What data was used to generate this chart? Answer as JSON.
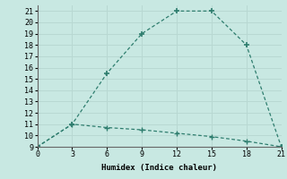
{
  "line1_x": [
    0,
    3,
    6,
    9,
    12,
    15,
    18,
    21
  ],
  "line1_y": [
    9,
    11,
    15.5,
    19,
    21,
    21,
    18,
    9
  ],
  "line2_x": [
    0,
    3,
    6,
    9,
    12,
    15,
    18,
    21
  ],
  "line2_y": [
    9,
    11,
    10.7,
    10.5,
    10.2,
    9.9,
    9.5,
    9
  ],
  "line_color": "#2e7d6e",
  "bg_color": "#c8e8e2",
  "grid_color": "#b8d8d2",
  "xlabel": "Humidex (Indice chaleur)",
  "xlim": [
    0,
    21
  ],
  "ylim": [
    9,
    21.5
  ],
  "xticks": [
    0,
    3,
    6,
    9,
    12,
    15,
    18,
    21
  ],
  "yticks": [
    9,
    10,
    11,
    12,
    13,
    14,
    15,
    16,
    17,
    18,
    19,
    20,
    21
  ]
}
